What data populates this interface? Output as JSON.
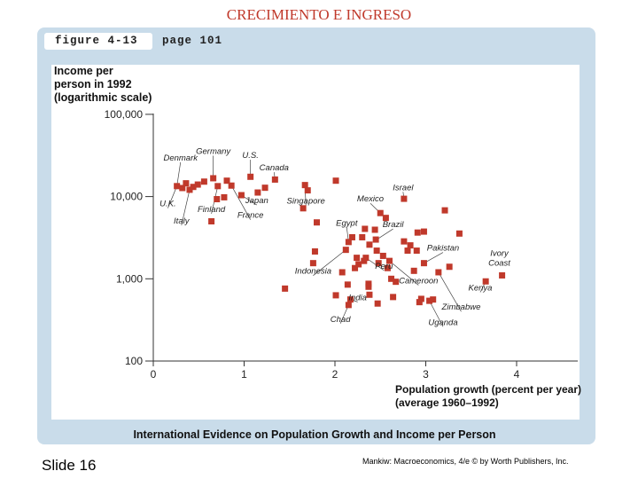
{
  "slide": {
    "title": "CRECIMIENTO E INGRESO",
    "number_label": "Slide 16",
    "credit": "Mankiw: Macroeconomics, 4/e © by Worth Publishers, Inc."
  },
  "figure": {
    "label": "figure 4-13",
    "page": "page 101"
  },
  "colors": {
    "marker": "#c0392b",
    "panel": "#c9dcea",
    "title": "#c0392b"
  },
  "chart_data": {
    "type": "scatter",
    "title": "International Evidence on Population Growth and Income per Person",
    "ylabel": "Income per\nperson in 1992\n(logarithmic scale)",
    "xlabel": "Population growth (percent per year)\n(average 1960–1992)",
    "y_scale": "log",
    "xlim": [
      0,
      4.7
    ],
    "ylim": [
      100,
      100000
    ],
    "x_ticks": [
      0,
      1,
      2,
      3,
      4
    ],
    "y_ticks": [
      100,
      1000,
      10000,
      100000
    ],
    "y_tick_labels": [
      "100",
      "1,000",
      "10,000",
      "100,000"
    ],
    "points": [
      {
        "x": 0.26,
        "y": 13400
      },
      {
        "x": 0.32,
        "y": 12700
      },
      {
        "x": 0.36,
        "y": 14500
      },
      {
        "x": 0.4,
        "y": 12100
      },
      {
        "x": 0.44,
        "y": 13100
      },
      {
        "x": 0.49,
        "y": 14000
      },
      {
        "x": 0.56,
        "y": 15200
      },
      {
        "x": 0.64,
        "y": 5000
      },
      {
        "x": 0.66,
        "y": 16700
      },
      {
        "x": 0.7,
        "y": 9300
      },
      {
        "x": 0.71,
        "y": 13400
      },
      {
        "x": 0.78,
        "y": 9800
      },
      {
        "x": 0.81,
        "y": 15600
      },
      {
        "x": 0.86,
        "y": 13600
      },
      {
        "x": 0.97,
        "y": 10400
      },
      {
        "x": 1.07,
        "y": 17400
      },
      {
        "x": 1.15,
        "y": 11200
      },
      {
        "x": 1.23,
        "y": 12800
      },
      {
        "x": 1.34,
        "y": 16100
      },
      {
        "x": 1.45,
        "y": 760
      },
      {
        "x": 1.65,
        "y": 7200
      },
      {
        "x": 1.67,
        "y": 13800
      },
      {
        "x": 1.7,
        "y": 11900
      },
      {
        "x": 1.76,
        "y": 1550
      },
      {
        "x": 1.78,
        "y": 2150
      },
      {
        "x": 1.8,
        "y": 4850
      },
      {
        "x": 2.01,
        "y": 15600
      },
      {
        "x": 2.01,
        "y": 630
      },
      {
        "x": 2.08,
        "y": 1200
      },
      {
        "x": 2.12,
        "y": 2250
      },
      {
        "x": 2.14,
        "y": 850
      },
      {
        "x": 2.15,
        "y": 2800
      },
      {
        "x": 2.15,
        "y": 480
      },
      {
        "x": 2.17,
        "y": 560
      },
      {
        "x": 2.19,
        "y": 3200
      },
      {
        "x": 2.22,
        "y": 1350
      },
      {
        "x": 2.24,
        "y": 1800
      },
      {
        "x": 2.26,
        "y": 1500
      },
      {
        "x": 2.3,
        "y": 3200
      },
      {
        "x": 2.32,
        "y": 1650
      },
      {
        "x": 2.33,
        "y": 4050
      },
      {
        "x": 2.34,
        "y": 1800
      },
      {
        "x": 2.37,
        "y": 870
      },
      {
        "x": 2.37,
        "y": 800
      },
      {
        "x": 2.38,
        "y": 2600
      },
      {
        "x": 2.38,
        "y": 640
      },
      {
        "x": 2.44,
        "y": 3950
      },
      {
        "x": 2.45,
        "y": 3000
      },
      {
        "x": 2.46,
        "y": 2200
      },
      {
        "x": 2.47,
        "y": 500
      },
      {
        "x": 2.48,
        "y": 1550
      },
      {
        "x": 2.5,
        "y": 6300
      },
      {
        "x": 2.53,
        "y": 1900
      },
      {
        "x": 2.56,
        "y": 5500
      },
      {
        "x": 2.58,
        "y": 1350
      },
      {
        "x": 2.6,
        "y": 1650
      },
      {
        "x": 2.62,
        "y": 1000
      },
      {
        "x": 2.64,
        "y": 600
      },
      {
        "x": 2.67,
        "y": 920
      },
      {
        "x": 2.76,
        "y": 9400
      },
      {
        "x": 2.76,
        "y": 2850
      },
      {
        "x": 2.8,
        "y": 2200
      },
      {
        "x": 2.83,
        "y": 2550
      },
      {
        "x": 2.87,
        "y": 1250
      },
      {
        "x": 2.9,
        "y": 2200
      },
      {
        "x": 2.91,
        "y": 3650
      },
      {
        "x": 2.93,
        "y": 520
      },
      {
        "x": 2.95,
        "y": 570
      },
      {
        "x": 2.98,
        "y": 3750
      },
      {
        "x": 2.98,
        "y": 1550
      },
      {
        "x": 3.04,
        "y": 540
      },
      {
        "x": 3.08,
        "y": 560
      },
      {
        "x": 3.14,
        "y": 1200
      },
      {
        "x": 3.21,
        "y": 6800
      },
      {
        "x": 3.26,
        "y": 1400
      },
      {
        "x": 3.37,
        "y": 3550
      },
      {
        "x": 3.66,
        "y": 930
      },
      {
        "x": 3.84,
        "y": 1100
      }
    ],
    "annotations": [
      {
        "label": "Denmark",
        "x": 0.3,
        "y": 27500,
        "tx": 0.26,
        "ty": 13400,
        "anchor": "middle"
      },
      {
        "label": "Germany",
        "x": 0.66,
        "y": 33000,
        "tx": 0.66,
        "ty": 16700,
        "anchor": "middle"
      },
      {
        "label": "U.S.",
        "x": 1.07,
        "y": 29500,
        "tx": 1.07,
        "ty": 17400,
        "anchor": "middle"
      },
      {
        "label": "Canada",
        "x": 1.33,
        "y": 20800,
        "tx": 1.34,
        "ty": 16100,
        "anchor": "middle"
      },
      {
        "label": "U.K.",
        "x": 0.16,
        "y": 7600,
        "tx": 0.26,
        "ty": 13400,
        "anchor": "middle"
      },
      {
        "label": "Italy",
        "x": 0.31,
        "y": 4700,
        "tx": 0.4,
        "ty": 12100,
        "anchor": "middle"
      },
      {
        "label": "Finland",
        "x": 0.64,
        "y": 6500,
        "tx": 0.71,
        "ty": 13400,
        "anchor": "middle"
      },
      {
        "label": "Japan",
        "x": 1.14,
        "y": 8300,
        "tx": 0.97,
        "ty": 10400,
        "anchor": "middle"
      },
      {
        "label": "France",
        "x": 1.07,
        "y": 5500,
        "tx": 0.86,
        "ty": 13600,
        "anchor": "middle"
      },
      {
        "label": "Singapore",
        "x": 1.68,
        "y": 8200,
        "tx": 1.67,
        "ty": 13800,
        "anchor": "middle"
      },
      {
        "label": "Israel",
        "x": 2.75,
        "y": 12000,
        "tx": 2.76,
        "ty": 9400,
        "anchor": "middle"
      },
      {
        "label": "Mexico",
        "x": 2.39,
        "y": 8700,
        "tx": 2.5,
        "ty": 6300,
        "anchor": "middle"
      },
      {
        "label": "Egypt",
        "x": 2.13,
        "y": 4400,
        "tx": 2.15,
        "ty": 2800,
        "anchor": "middle"
      },
      {
        "label": "Brazil",
        "x": 2.64,
        "y": 4250,
        "tx": 2.46,
        "ty": 3000,
        "anchor": "middle"
      },
      {
        "label": "Pakistan",
        "x": 3.19,
        "y": 2200,
        "tx": 2.98,
        "ty": 1550,
        "anchor": "middle"
      },
      {
        "label": "Ivory",
        "x": 3.81,
        "y": 1900,
        "tx": null,
        "ty": null,
        "anchor": "middle"
      },
      {
        "label": "Coast",
        "x": 3.81,
        "y": 1440,
        "tx": null,
        "ty": null,
        "anchor": "middle"
      },
      {
        "label": "Indonesia",
        "x": 1.76,
        "y": 1150,
        "tx": 2.12,
        "ty": 2250,
        "anchor": "middle"
      },
      {
        "label": "Peru",
        "x": 2.54,
        "y": 1330,
        "tx": 2.34,
        "ty": 1800,
        "anchor": "middle"
      },
      {
        "label": "Cameroon",
        "x": 2.92,
        "y": 880,
        "tx": 2.6,
        "ty": 1650,
        "anchor": "middle"
      },
      {
        "label": "Kenya",
        "x": 3.6,
        "y": 720,
        "tx": 3.66,
        "ty": 930,
        "anchor": "middle"
      },
      {
        "label": "India",
        "x": 2.25,
        "y": 550,
        "tx": 2.17,
        "ty": 560,
        "anchor": "middle"
      },
      {
        "label": "Zimbabwe",
        "x": 3.39,
        "y": 420,
        "tx": 3.14,
        "ty": 1200,
        "anchor": "middle"
      },
      {
        "label": "Chad",
        "x": 2.06,
        "y": 300,
        "tx": 2.15,
        "ty": 480,
        "anchor": "middle"
      },
      {
        "label": "Uganda",
        "x": 3.19,
        "y": 275,
        "tx": 3.04,
        "ty": 540,
        "anchor": "middle"
      }
    ]
  }
}
